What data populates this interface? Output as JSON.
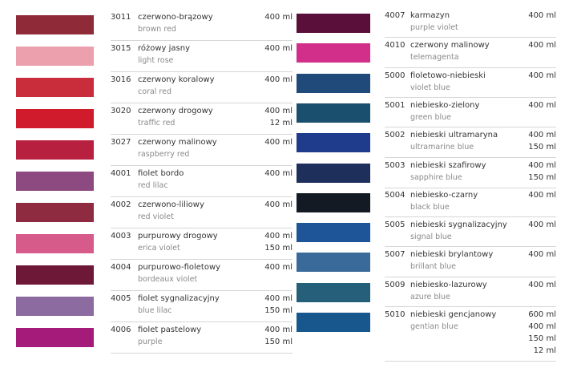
{
  "columns": [
    {
      "rows": [
        {
          "code": "3011",
          "name": "czerwono-brązowy",
          "name_en": "brown red",
          "volumes": [
            "400 ml"
          ],
          "color": "#8f2a38"
        },
        {
          "code": "3015",
          "name": "różowy jasny",
          "name_en": "light rose",
          "volumes": [
            "400 ml"
          ],
          "color": "#eca0ae"
        },
        {
          "code": "3016",
          "name": "czerwony koralowy",
          "name_en": "coral red",
          "volumes": [
            "400 ml"
          ],
          "color": "#c92c3a"
        },
        {
          "code": "3020",
          "name": "czerwony drogowy",
          "name_en": "traffic red",
          "volumes": [
            "400 ml",
            "12 ml"
          ],
          "color": "#cf1b2c"
        },
        {
          "code": "3027",
          "name": "czerwony malinowy",
          "name_en": "raspberry red",
          "volumes": [
            "400 ml"
          ],
          "color": "#b8203f"
        },
        {
          "code": "4001",
          "name": "fiolet bordo",
          "name_en": "red lilac",
          "volumes": [
            "400 ml"
          ],
          "color": "#8c4a80"
        },
        {
          "code": "4002",
          "name": "czerwono-liliowy",
          "name_en": "red violet",
          "volumes": [
            "400 ml"
          ],
          "color": "#8f2b41"
        },
        {
          "code": "4003",
          "name": "purpurowy drogowy",
          "name_en": "erica violet",
          "volumes": [
            "400 ml",
            "150 ml"
          ],
          "color": "#d65b8a"
        },
        {
          "code": "4004",
          "name": "purpurowo-fioletowy",
          "name_en": "bordeaux violet",
          "volumes": [
            "400 ml"
          ],
          "color": "#6e1838"
        },
        {
          "code": "4005",
          "name": "fiolet sygnalizacyjny",
          "name_en": "blue lilac",
          "volumes": [
            "400 ml",
            "150 ml"
          ],
          "color": "#8c6ba0"
        },
        {
          "code": "4006",
          "name": "fiolet pastelowy",
          "name_en": "purple",
          "volumes": [
            "400 ml",
            "150 ml"
          ],
          "color": "#a41b79"
        }
      ]
    },
    {
      "rows": [
        {
          "code": "4007",
          "name": "karmazyn",
          "name_en": "purple violet",
          "volumes": [
            "400 ml"
          ],
          "color": "#5a0f3a"
        },
        {
          "code": "4010",
          "name": "czerwony malinowy",
          "name_en": "telemagenta",
          "volumes": [
            "400 ml"
          ],
          "color": "#d22f8a"
        },
        {
          "code": "5000",
          "name": "fioletowo-niebieski",
          "name_en": "violet blue",
          "volumes": [
            "400 ml"
          ],
          "color": "#1f4a7a"
        },
        {
          "code": "5001",
          "name": "niebiesko-zielony",
          "name_en": "green blue",
          "volumes": [
            "400 ml"
          ],
          "color": "#1a4f6e"
        },
        {
          "code": "5002",
          "name": "niebieski ultramaryna",
          "name_en": "ultramarine blue",
          "volumes": [
            "400 ml",
            "150 ml"
          ],
          "color": "#1e3b8c"
        },
        {
          "code": "5003",
          "name": "niebieski szafirowy",
          "name_en": "sapphire blue",
          "volumes": [
            "400 ml",
            "150 ml"
          ],
          "color": "#1f2f5c"
        },
        {
          "code": "5004",
          "name": "niebiesko-czarny",
          "name_en": "black blue",
          "volumes": [
            "400 ml"
          ],
          "color": "#141a24"
        },
        {
          "code": "5005",
          "name": "niebieski sygnalizacyjny",
          "name_en": "signal blue",
          "volumes": [
            "400 ml"
          ],
          "color": "#1e5598"
        },
        {
          "code": "5007",
          "name": "niebieski brylantowy",
          "name_en": "brillant blue",
          "volumes": [
            "400 ml"
          ],
          "color": "#3a6a9a"
        },
        {
          "code": "5009",
          "name": "niebiesko-lazurowy",
          "name_en": "azure blue",
          "volumes": [
            "400 ml"
          ],
          "color": "#255f7a"
        },
        {
          "code": "5010",
          "name": "niebieski gencjanowy",
          "name_en": "gentian blue",
          "volumes": [
            "600 ml",
            "400 ml",
            "150 ml",
            "12 ml"
          ],
          "color": "#17578e"
        }
      ]
    }
  ]
}
